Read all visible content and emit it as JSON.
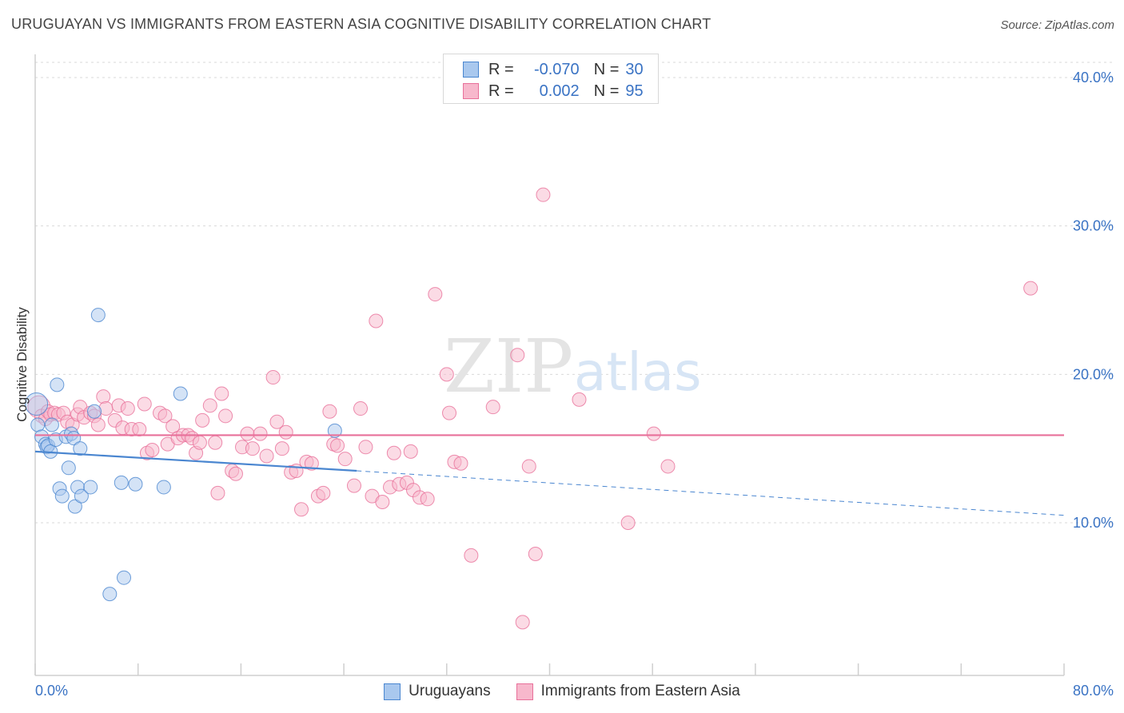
{
  "header": {
    "title": "URUGUAYAN VS IMMIGRANTS FROM EASTERN ASIA COGNITIVE DISABILITY CORRELATION CHART",
    "source": "Source: ZipAtlas.com"
  },
  "watermark": {
    "zip": "ZIP",
    "atlas": "atlas"
  },
  "colors": {
    "blue": "#4a86d0",
    "blue_fill": "#a9c8ee",
    "pink": "#e8709a",
    "pink_fill": "#f7b8cc",
    "tick_label": "#3a73c4",
    "grid": "#d9d9d9"
  },
  "legend_top": {
    "rows": [
      {
        "r_label": "R =",
        "r_value": "-0.070",
        "n_label": "N =",
        "n_value": "30"
      },
      {
        "r_label": "R =",
        "r_value": "0.002",
        "n_label": "N =",
        "n_value": "95"
      }
    ]
  },
  "chart_data": {
    "type": "scatter",
    "title": "URUGUAYAN VS IMMIGRANTS FROM EASTERN ASIA COGNITIVE DISABILITY CORRELATION CHART",
    "xlabel": "",
    "ylabel": "Cognitive Disability",
    "xlim": [
      0,
      80
    ],
    "ylim": [
      0,
      40
    ],
    "x_tick_labels": [
      "0.0%",
      "80.0%"
    ],
    "y_ticks": [
      10,
      20,
      30,
      40
    ],
    "y_tick_labels": [
      "10.0%",
      "20.0%",
      "30.0%",
      "40.0%"
    ],
    "series": [
      {
        "name": "Uruguayans",
        "r": -0.07,
        "n": 30,
        "trend": {
          "start": [
            0,
            14.8
          ],
          "solid_end": [
            25,
            13.5
          ],
          "dash_end": [
            80,
            10.5
          ]
        },
        "points": [
          [
            0.1,
            18.0
          ],
          [
            0.2,
            16.6
          ],
          [
            0.5,
            15.8
          ],
          [
            0.8,
            15.3
          ],
          [
            0.9,
            15.1
          ],
          [
            1.0,
            15.2
          ],
          [
            1.2,
            14.8
          ],
          [
            1.3,
            16.6
          ],
          [
            1.6,
            15.6
          ],
          [
            1.7,
            19.3
          ],
          [
            1.9,
            12.3
          ],
          [
            2.1,
            11.8
          ],
          [
            2.4,
            15.8
          ],
          [
            2.6,
            13.7
          ],
          [
            2.8,
            16.0
          ],
          [
            3.0,
            15.7
          ],
          [
            3.1,
            11.1
          ],
          [
            3.3,
            12.4
          ],
          [
            3.5,
            15.0
          ],
          [
            3.6,
            11.8
          ],
          [
            4.3,
            12.4
          ],
          [
            4.6,
            17.5
          ],
          [
            4.9,
            24.0
          ],
          [
            5.8,
            5.2
          ],
          [
            6.7,
            12.7
          ],
          [
            6.9,
            6.3
          ],
          [
            7.8,
            12.6
          ],
          [
            10.0,
            12.4
          ],
          [
            11.3,
            18.7
          ],
          [
            23.3,
            16.2
          ]
        ]
      },
      {
        "name": "Immigrants from Eastern Asia",
        "r": 0.002,
        "n": 95,
        "trend": {
          "start": [
            0,
            15.9
          ],
          "end": [
            80,
            15.9
          ]
        },
        "points": [
          [
            0.3,
            17.8
          ],
          [
            0.5,
            17.2
          ],
          [
            0.8,
            17.0
          ],
          [
            1.0,
            17.5
          ],
          [
            1.2,
            17.3
          ],
          [
            1.5,
            17.4
          ],
          [
            1.8,
            17.3
          ],
          [
            2.2,
            17.4
          ],
          [
            2.5,
            16.8
          ],
          [
            2.9,
            16.6
          ],
          [
            3.3,
            17.3
          ],
          [
            3.5,
            17.8
          ],
          [
            3.8,
            17.1
          ],
          [
            4.3,
            17.4
          ],
          [
            4.6,
            17.2
          ],
          [
            4.9,
            16.6
          ],
          [
            5.3,
            18.5
          ],
          [
            5.5,
            17.7
          ],
          [
            6.2,
            16.9
          ],
          [
            6.5,
            17.9
          ],
          [
            6.8,
            16.4
          ],
          [
            7.2,
            17.7
          ],
          [
            7.5,
            16.3
          ],
          [
            8.1,
            16.3
          ],
          [
            8.5,
            18.0
          ],
          [
            8.7,
            14.7
          ],
          [
            9.1,
            14.9
          ],
          [
            9.7,
            17.4
          ],
          [
            10.1,
            17.2
          ],
          [
            10.3,
            15.3
          ],
          [
            10.7,
            16.5
          ],
          [
            11.1,
            15.7
          ],
          [
            11.5,
            15.9
          ],
          [
            11.9,
            15.9
          ],
          [
            12.2,
            15.7
          ],
          [
            12.5,
            14.7
          ],
          [
            12.8,
            15.4
          ],
          [
            13.0,
            16.9
          ],
          [
            13.6,
            17.9
          ],
          [
            14.0,
            15.4
          ],
          [
            14.2,
            12.0
          ],
          [
            14.5,
            18.7
          ],
          [
            14.8,
            17.2
          ],
          [
            15.3,
            13.5
          ],
          [
            15.6,
            13.3
          ],
          [
            16.1,
            15.1
          ],
          [
            16.5,
            16.0
          ],
          [
            16.9,
            15.0
          ],
          [
            17.5,
            16.0
          ],
          [
            18.0,
            14.5
          ],
          [
            18.5,
            19.8
          ],
          [
            18.8,
            16.8
          ],
          [
            19.2,
            15.0
          ],
          [
            19.5,
            16.1
          ],
          [
            19.9,
            13.4
          ],
          [
            20.3,
            13.5
          ],
          [
            20.7,
            10.9
          ],
          [
            21.1,
            14.1
          ],
          [
            21.5,
            14.0
          ],
          [
            22.0,
            11.8
          ],
          [
            22.4,
            12.0
          ],
          [
            22.9,
            17.5
          ],
          [
            23.2,
            15.3
          ],
          [
            23.5,
            15.2
          ],
          [
            24.1,
            14.3
          ],
          [
            24.8,
            12.5
          ],
          [
            25.3,
            17.7
          ],
          [
            25.7,
            15.1
          ],
          [
            26.2,
            11.8
          ],
          [
            26.5,
            23.6
          ],
          [
            27.0,
            11.4
          ],
          [
            27.6,
            12.4
          ],
          [
            27.9,
            14.7
          ],
          [
            28.3,
            12.6
          ],
          [
            28.9,
            12.7
          ],
          [
            29.2,
            14.8
          ],
          [
            29.4,
            12.2
          ],
          [
            29.9,
            11.7
          ],
          [
            30.5,
            11.6
          ],
          [
            31.1,
            25.4
          ],
          [
            32.0,
            20.0
          ],
          [
            32.2,
            17.4
          ],
          [
            32.6,
            14.1
          ],
          [
            33.1,
            14.0
          ],
          [
            33.9,
            7.8
          ],
          [
            35.6,
            17.8
          ],
          [
            37.5,
            21.3
          ],
          [
            37.9,
            3.3
          ],
          [
            38.4,
            13.8
          ],
          [
            38.9,
            7.9
          ],
          [
            39.5,
            32.1
          ],
          [
            42.3,
            18.3
          ],
          [
            46.1,
            10.0
          ],
          [
            48.1,
            16.0
          ],
          [
            49.2,
            13.8
          ],
          [
            77.4,
            25.8
          ]
        ]
      }
    ]
  },
  "legend_bottom": [
    "Uruguayans",
    "Immigrants from Eastern Asia"
  ]
}
